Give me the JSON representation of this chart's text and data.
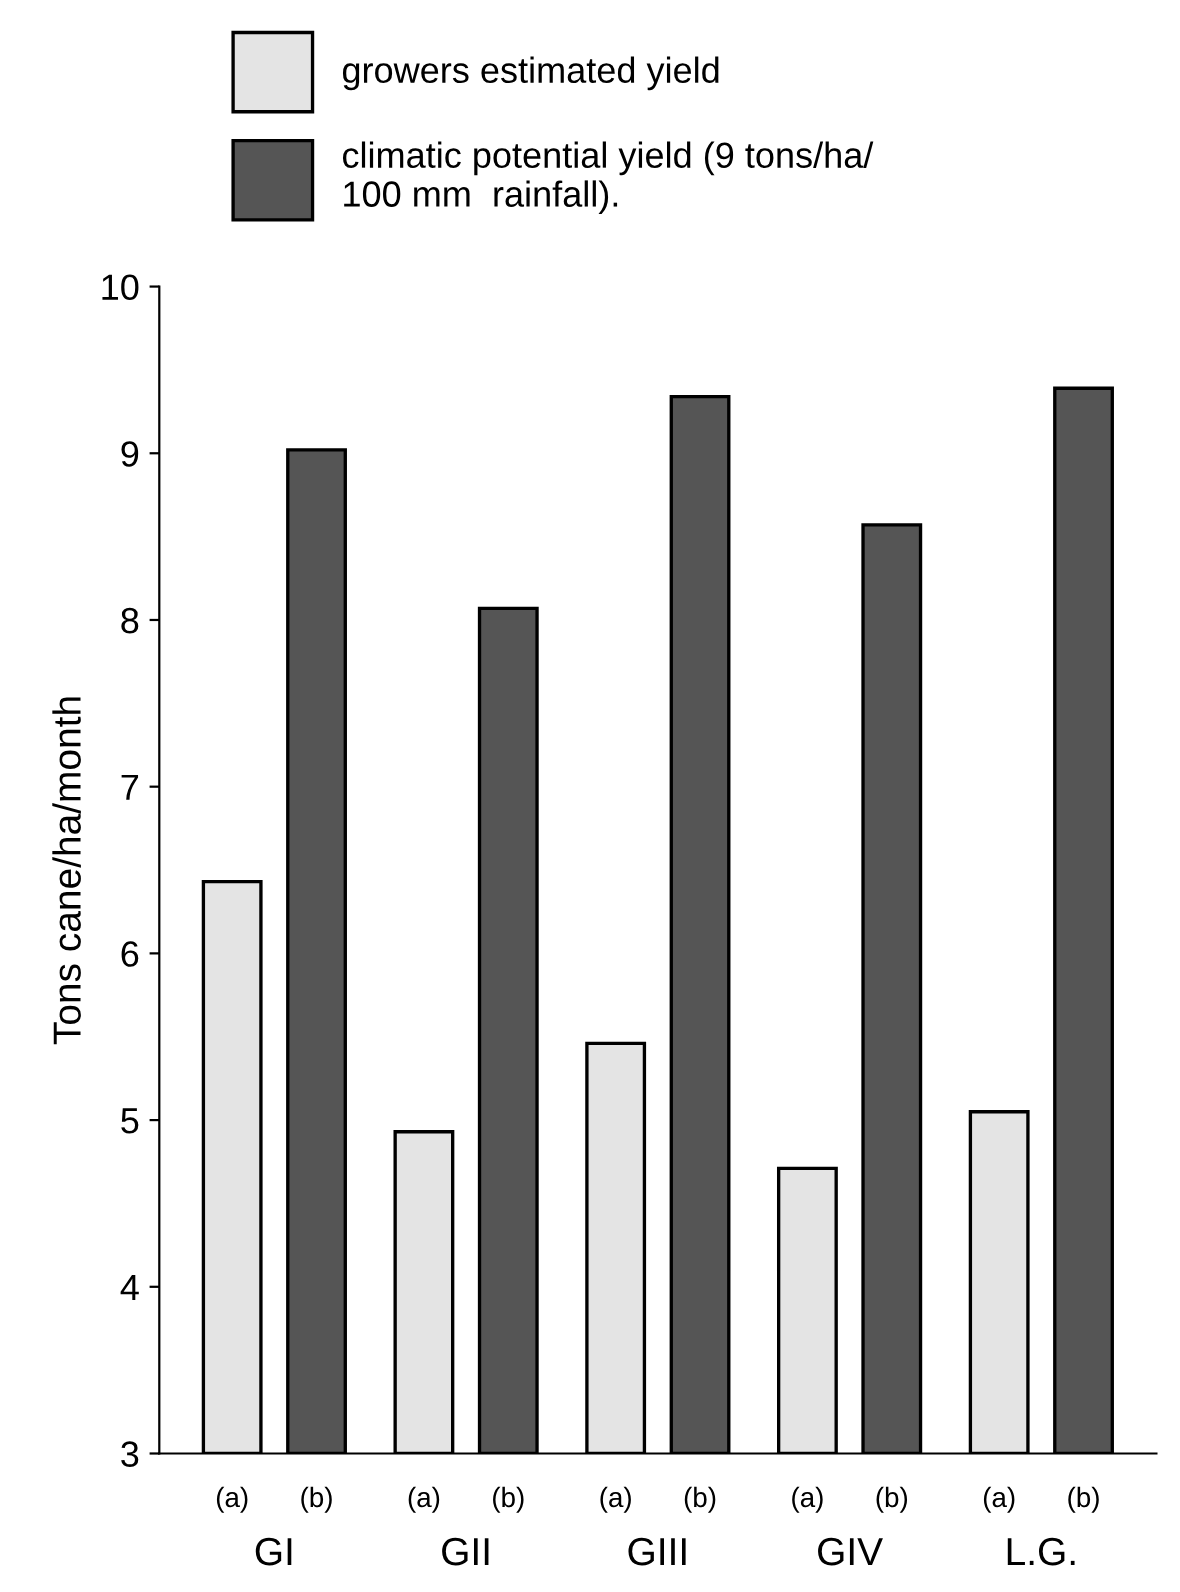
{
  "chart_data": {
    "type": "bar",
    "ylabel": "Tons cane/ha/month",
    "categories": [
      "GI",
      "GII",
      "GIII",
      "GIV",
      "L.G."
    ],
    "series": [
      {
        "name": "growers estimated yield",
        "color": "#e4e4e4",
        "values": [
          6.43,
          4.93,
          5.46,
          4.71,
          5.05
        ]
      },
      {
        "name": "climatic potential yield (9 tons/ha/\n100 mm  rainfall).",
        "color": "#555555",
        "values": [
          9.02,
          8.07,
          9.34,
          8.57,
          9.39
        ]
      }
    ],
    "annotations": [
      "(a)",
      "(b)",
      "(a)",
      "(b)",
      "(a)",
      "(b)",
      "(a)",
      "(b)",
      "(a)",
      "(b)"
    ],
    "ylim": [
      3,
      10
    ],
    "yticks": [
      3,
      4,
      5,
      6,
      7,
      8,
      9,
      10
    ],
    "grid": false,
    "legend": "top left"
  }
}
